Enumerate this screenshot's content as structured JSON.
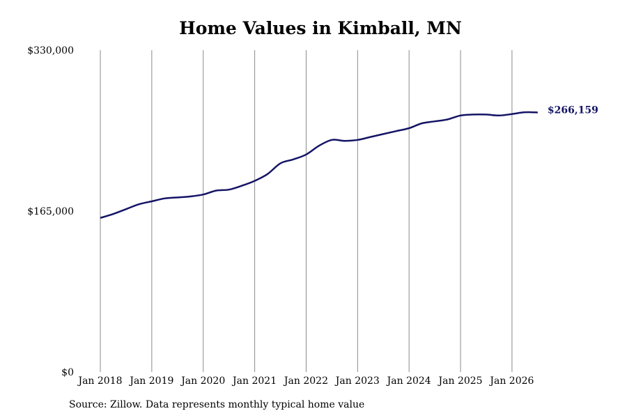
{
  "chart_data": {
    "type": "line",
    "title": "Home Values in Kimball, MN",
    "subtitle": "",
    "xlabel": "",
    "ylabel": "",
    "ylim": [
      0,
      330000
    ],
    "xlim": [
      "2018-01",
      "2026-08"
    ],
    "y_ticks": [
      {
        "value": 0,
        "label": "$0"
      },
      {
        "value": 165000,
        "label": "$165,000"
      },
      {
        "value": 330000,
        "label": "$330,000"
      }
    ],
    "x_ticks": [
      {
        "value": "2018-01",
        "label": "Jan 2018"
      },
      {
        "value": "2019-01",
        "label": "Jan 2019"
      },
      {
        "value": "2020-01",
        "label": "Jan 2020"
      },
      {
        "value": "2021-01",
        "label": "Jan 2021"
      },
      {
        "value": "2022-01",
        "label": "Jan 2022"
      },
      {
        "value": "2023-01",
        "label": "Jan 2023"
      },
      {
        "value": "2024-01",
        "label": "Jan 2024"
      },
      {
        "value": "2025-01",
        "label": "Jan 2025"
      },
      {
        "value": "2026-01",
        "label": "Jan 2026"
      }
    ],
    "grid": {
      "vertical": true,
      "horizontal": false
    },
    "series": [
      {
        "color": "#141466",
        "end_label": "$266,159",
        "points": [
          [
            "2018-01",
            158000
          ],
          [
            "2018-04",
            162000
          ],
          [
            "2018-07",
            167000
          ],
          [
            "2018-10",
            172000
          ],
          [
            "2019-01",
            175000
          ],
          [
            "2019-04",
            178000
          ],
          [
            "2019-07",
            179000
          ],
          [
            "2019-10",
            180000
          ],
          [
            "2020-01",
            182000
          ],
          [
            "2020-04",
            186000
          ],
          [
            "2020-07",
            187000
          ],
          [
            "2020-10",
            191000
          ],
          [
            "2021-01",
            196000
          ],
          [
            "2021-04",
            203000
          ],
          [
            "2021-07",
            214000
          ],
          [
            "2021-10",
            218000
          ],
          [
            "2022-01",
            223000
          ],
          [
            "2022-04",
            232000
          ],
          [
            "2022-07",
            238000
          ],
          [
            "2022-10",
            237000
          ],
          [
            "2023-01",
            238000
          ],
          [
            "2023-04",
            241000
          ],
          [
            "2023-07",
            244000
          ],
          [
            "2023-10",
            247000
          ],
          [
            "2024-01",
            250000
          ],
          [
            "2024-04",
            255000
          ],
          [
            "2024-07",
            257000
          ],
          [
            "2024-10",
            259000
          ],
          [
            "2025-01",
            263000
          ],
          [
            "2025-04",
            264000
          ],
          [
            "2025-07",
            264000
          ],
          [
            "2025-10",
            263000
          ],
          [
            "2026-01",
            264500
          ],
          [
            "2026-04",
            266300
          ],
          [
            "2026-07",
            266159
          ]
        ]
      }
    ]
  },
  "footer": {
    "source": "Source: Zillow. Data represents monthly typical home value"
  }
}
